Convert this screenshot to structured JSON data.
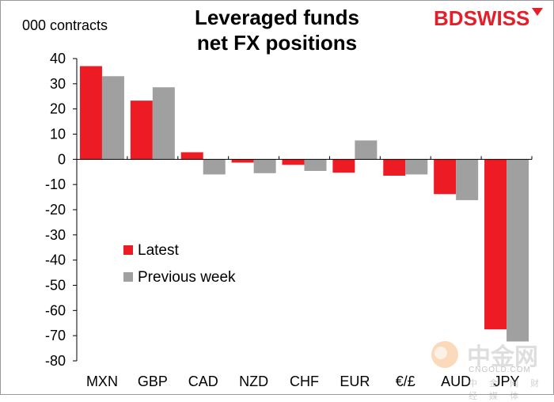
{
  "chart_data": {
    "type": "bar",
    "title_line1": "Leveraged funds",
    "title_line2": "net FX positions",
    "ylabel": "000 contracts",
    "categories": [
      "MXN",
      "GBP",
      "CAD",
      "NZD",
      "CHF",
      "EUR",
      "€/£",
      "AUD",
      "JPY"
    ],
    "series": [
      {
        "name": "Latest",
        "color": "#ed1c24",
        "values": [
          37,
          23.3,
          2.8,
          -1.3,
          -2.2,
          -5.3,
          -6.5,
          -13.8,
          -67.5
        ]
      },
      {
        "name": "Previous week",
        "color": "#a0a0a0",
        "values": [
          33,
          28.6,
          -6,
          -5.5,
          -4.6,
          7.5,
          -6,
          -16.2,
          -72.3
        ]
      }
    ],
    "ylim": [
      -80,
      40
    ],
    "yticks": [
      40,
      30,
      20,
      10,
      0,
      -10,
      -20,
      -30,
      -40,
      -50,
      -60,
      -70,
      -80
    ],
    "legend_position": "center-left"
  },
  "logo": {
    "part1": "BD",
    "part2": "SWISS"
  },
  "watermark": {
    "main": "中金网",
    "url": "CNGOLD.COM",
    "sub": "中 金 网 财 经 媒 体"
  }
}
